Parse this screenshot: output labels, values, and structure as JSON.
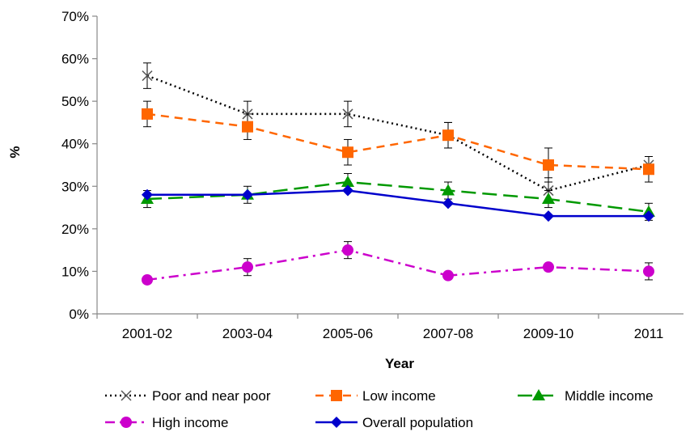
{
  "chart_data": {
    "type": "line",
    "xlabel": "Year",
    "ylabel": "%",
    "categories": [
      "2001-02",
      "2003-04",
      "2005-06",
      "2007-08",
      "2009-10",
      "2011"
    ],
    "ylim": [
      0,
      70
    ],
    "yticks": [
      0,
      10,
      20,
      30,
      40,
      50,
      60,
      70
    ],
    "ytick_labels": [
      "0%",
      "10%",
      "20%",
      "30%",
      "40%",
      "50%",
      "60%",
      "70%"
    ],
    "grid": false,
    "legend_position": "bottom",
    "series": [
      {
        "name": "Poor and near poor",
        "values": [
          56,
          47,
          47,
          42,
          29,
          35
        ],
        "error": [
          3,
          3,
          3,
          3,
          3,
          2
        ],
        "color": "#000000",
        "line_style": "dotted",
        "marker": "x-cross"
      },
      {
        "name": "Low income",
        "values": [
          47,
          44,
          38,
          42,
          35,
          34
        ],
        "error": [
          3,
          3,
          3,
          3,
          4,
          3
        ],
        "color": "#ff6600",
        "line_style": "dashed",
        "marker": "square"
      },
      {
        "name": "Middle income",
        "values": [
          27,
          28,
          31,
          29,
          27,
          24
        ],
        "error": [
          2,
          2,
          2,
          2,
          2,
          2
        ],
        "color": "#009900",
        "line_style": "long-dash",
        "marker": "triangle"
      },
      {
        "name": "High income",
        "values": [
          8,
          11,
          15,
          9,
          11,
          10
        ],
        "error": [
          0,
          2,
          2,
          0,
          0,
          2
        ],
        "color": "#cc00cc",
        "line_style": "dash-dot",
        "marker": "circle"
      },
      {
        "name": "Overall population",
        "values": [
          28,
          28,
          29,
          26,
          23,
          23
        ],
        "error": [
          0,
          0,
          0,
          0,
          0,
          0
        ],
        "color": "#0000cc",
        "line_style": "solid",
        "marker": "diamond"
      }
    ]
  }
}
